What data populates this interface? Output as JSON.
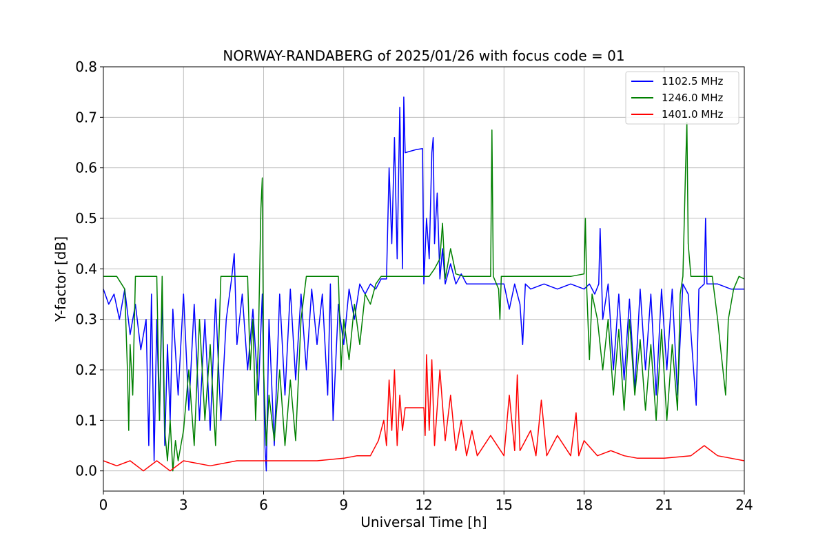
{
  "chart_data": {
    "type": "line",
    "title": "NORWAY-RANDABERG of 2025/01/26 with focus code = 01",
    "xlabel": "Universal Time [h]",
    "ylabel": "Y-factor [dB]",
    "xlim": [
      0,
      24
    ],
    "ylim": [
      -0.04,
      0.8
    ],
    "xticks": [
      0,
      3,
      6,
      9,
      12,
      15,
      18,
      21,
      24
    ],
    "xtick_labels": [
      "0",
      "3",
      "6",
      "9",
      "12",
      "15",
      "18",
      "21",
      "24"
    ],
    "yticks": [
      0.0,
      0.1,
      0.2,
      0.3,
      0.4,
      0.5,
      0.6,
      0.7,
      0.8
    ],
    "ytick_labels": [
      "0.0",
      "0.1",
      "0.2",
      "0.3",
      "0.4",
      "0.5",
      "0.6",
      "0.7",
      "0.8"
    ],
    "grid": true,
    "legend_position": "top-right",
    "series": [
      {
        "name": "1102.5 MHz",
        "color": "#0000ff",
        "points": [
          [
            0.0,
            0.36
          ],
          [
            0.2,
            0.33
          ],
          [
            0.4,
            0.35
          ],
          [
            0.6,
            0.3
          ],
          [
            0.8,
            0.36
          ],
          [
            1.0,
            0.27
          ],
          [
            1.2,
            0.33
          ],
          [
            1.4,
            0.24
          ],
          [
            1.6,
            0.3
          ],
          [
            1.7,
            0.05
          ],
          [
            1.8,
            0.35
          ],
          [
            1.9,
            0.02
          ],
          [
            2.0,
            0.3
          ],
          [
            2.1,
            0.1
          ],
          [
            2.2,
            0.35
          ],
          [
            2.3,
            0.05
          ],
          [
            2.4,
            0.25
          ],
          [
            2.5,
            0.1
          ],
          [
            2.6,
            0.32
          ],
          [
            2.8,
            0.15
          ],
          [
            3.0,
            0.35
          ],
          [
            3.2,
            0.12
          ],
          [
            3.4,
            0.33
          ],
          [
            3.6,
            0.1
          ],
          [
            3.8,
            0.3
          ],
          [
            4.0,
            0.08
          ],
          [
            4.2,
            0.34
          ],
          [
            4.4,
            0.1
          ],
          [
            4.6,
            0.3
          ],
          [
            4.8,
            0.38
          ],
          [
            4.9,
            0.43
          ],
          [
            5.0,
            0.25
          ],
          [
            5.2,
            0.35
          ],
          [
            5.4,
            0.2
          ],
          [
            5.6,
            0.32
          ],
          [
            5.8,
            0.15
          ],
          [
            5.95,
            0.35
          ],
          [
            6.05,
            0.05
          ],
          [
            6.1,
            0.0
          ],
          [
            6.2,
            0.3
          ],
          [
            6.4,
            0.05
          ],
          [
            6.6,
            0.35
          ],
          [
            6.8,
            0.15
          ],
          [
            7.0,
            0.36
          ],
          [
            7.2,
            0.18
          ],
          [
            7.4,
            0.35
          ],
          [
            7.6,
            0.2
          ],
          [
            7.8,
            0.36
          ],
          [
            8.0,
            0.25
          ],
          [
            8.2,
            0.35
          ],
          [
            8.4,
            0.15
          ],
          [
            8.5,
            0.37
          ],
          [
            8.6,
            0.1
          ],
          [
            8.8,
            0.33
          ],
          [
            9.0,
            0.25
          ],
          [
            9.2,
            0.36
          ],
          [
            9.4,
            0.3
          ],
          [
            9.6,
            0.37
          ],
          [
            9.8,
            0.35
          ],
          [
            10.0,
            0.37
          ],
          [
            10.2,
            0.36
          ],
          [
            10.4,
            0.38
          ],
          [
            10.6,
            0.38
          ],
          [
            10.7,
            0.6
          ],
          [
            10.8,
            0.45
          ],
          [
            10.9,
            0.66
          ],
          [
            11.0,
            0.42
          ],
          [
            11.1,
            0.72
          ],
          [
            11.2,
            0.4
          ],
          [
            11.25,
            0.74
          ],
          [
            11.3,
            0.63
          ],
          [
            11.5,
            0.633
          ],
          [
            11.7,
            0.636
          ],
          [
            11.95,
            0.638
          ],
          [
            12.0,
            0.37
          ],
          [
            12.1,
            0.5
          ],
          [
            12.2,
            0.42
          ],
          [
            12.3,
            0.63
          ],
          [
            12.35,
            0.66
          ],
          [
            12.4,
            0.45
          ],
          [
            12.5,
            0.55
          ],
          [
            12.6,
            0.38
          ],
          [
            12.7,
            0.44
          ],
          [
            12.8,
            0.37
          ],
          [
            13.0,
            0.41
          ],
          [
            13.2,
            0.37
          ],
          [
            13.4,
            0.39
          ],
          [
            13.6,
            0.37
          ],
          [
            14.0,
            0.37
          ],
          [
            14.5,
            0.37
          ],
          [
            15.0,
            0.37
          ],
          [
            15.2,
            0.32
          ],
          [
            15.4,
            0.37
          ],
          [
            15.6,
            0.33
          ],
          [
            15.7,
            0.25
          ],
          [
            15.8,
            0.37
          ],
          [
            16.0,
            0.36
          ],
          [
            16.5,
            0.37
          ],
          [
            17.0,
            0.36
          ],
          [
            17.5,
            0.37
          ],
          [
            18.0,
            0.36
          ],
          [
            18.2,
            0.37
          ],
          [
            18.4,
            0.35
          ],
          [
            18.55,
            0.37
          ],
          [
            18.6,
            0.48
          ],
          [
            18.7,
            0.3
          ],
          [
            18.9,
            0.37
          ],
          [
            19.1,
            0.2
          ],
          [
            19.3,
            0.35
          ],
          [
            19.5,
            0.18
          ],
          [
            19.7,
            0.34
          ],
          [
            19.9,
            0.16
          ],
          [
            20.1,
            0.36
          ],
          [
            20.3,
            0.2
          ],
          [
            20.5,
            0.35
          ],
          [
            20.7,
            0.15
          ],
          [
            20.9,
            0.36
          ],
          [
            21.1,
            0.2
          ],
          [
            21.3,
            0.36
          ],
          [
            21.5,
            0.15
          ],
          [
            21.7,
            0.37
          ],
          [
            21.9,
            0.35
          ],
          [
            22.1,
            0.2
          ],
          [
            22.2,
            0.13
          ],
          [
            22.3,
            0.36
          ],
          [
            22.5,
            0.37
          ],
          [
            22.55,
            0.5
          ],
          [
            22.6,
            0.37
          ],
          [
            23.0,
            0.37
          ],
          [
            23.5,
            0.36
          ],
          [
            24.0,
            0.36
          ]
        ]
      },
      {
        "name": "1246.0 MHz",
        "color": "#008000",
        "points": [
          [
            0.0,
            0.385
          ],
          [
            0.5,
            0.385
          ],
          [
            0.8,
            0.36
          ],
          [
            0.9,
            0.2
          ],
          [
            0.95,
            0.08
          ],
          [
            1.0,
            0.25
          ],
          [
            1.1,
            0.15
          ],
          [
            1.2,
            0.385
          ],
          [
            1.5,
            0.385
          ],
          [
            1.8,
            0.385
          ],
          [
            2.0,
            0.385
          ],
          [
            2.1,
            0.1
          ],
          [
            2.2,
            0.385
          ],
          [
            2.3,
            0.08
          ],
          [
            2.4,
            0.02
          ],
          [
            2.5,
            0.1
          ],
          [
            2.6,
            0.0
          ],
          [
            2.7,
            0.06
          ],
          [
            2.8,
            0.02
          ],
          [
            3.0,
            0.08
          ],
          [
            3.2,
            0.2
          ],
          [
            3.4,
            0.05
          ],
          [
            3.6,
            0.3
          ],
          [
            3.8,
            0.1
          ],
          [
            4.0,
            0.25
          ],
          [
            4.2,
            0.05
          ],
          [
            4.4,
            0.385
          ],
          [
            4.6,
            0.385
          ],
          [
            4.8,
            0.385
          ],
          [
            5.0,
            0.385
          ],
          [
            5.2,
            0.385
          ],
          [
            5.4,
            0.385
          ],
          [
            5.5,
            0.2
          ],
          [
            5.6,
            0.3
          ],
          [
            5.7,
            0.1
          ],
          [
            5.8,
            0.25
          ],
          [
            5.9,
            0.52
          ],
          [
            5.95,
            0.58
          ],
          [
            6.0,
            0.2
          ],
          [
            6.1,
            0.05
          ],
          [
            6.2,
            0.15
          ],
          [
            6.4,
            0.06
          ],
          [
            6.6,
            0.2
          ],
          [
            6.8,
            0.05
          ],
          [
            7.0,
            0.18
          ],
          [
            7.2,
            0.06
          ],
          [
            7.4,
            0.3
          ],
          [
            7.6,
            0.385
          ],
          [
            8.0,
            0.385
          ],
          [
            8.5,
            0.385
          ],
          [
            8.8,
            0.385
          ],
          [
            8.9,
            0.2
          ],
          [
            9.0,
            0.3
          ],
          [
            9.2,
            0.22
          ],
          [
            9.4,
            0.33
          ],
          [
            9.6,
            0.25
          ],
          [
            9.8,
            0.35
          ],
          [
            10.0,
            0.33
          ],
          [
            10.2,
            0.37
          ],
          [
            10.4,
            0.385
          ],
          [
            11.0,
            0.385
          ],
          [
            12.0,
            0.385
          ],
          [
            12.2,
            0.385
          ],
          [
            12.4,
            0.4
          ],
          [
            12.6,
            0.42
          ],
          [
            12.7,
            0.49
          ],
          [
            12.8,
            0.38
          ],
          [
            13.0,
            0.44
          ],
          [
            13.2,
            0.39
          ],
          [
            13.5,
            0.385
          ],
          [
            14.0,
            0.385
          ],
          [
            14.5,
            0.385
          ],
          [
            14.55,
            0.675
          ],
          [
            14.6,
            0.385
          ],
          [
            14.8,
            0.36
          ],
          [
            14.85,
            0.3
          ],
          [
            14.9,
            0.385
          ],
          [
            15.5,
            0.385
          ],
          [
            16.0,
            0.385
          ],
          [
            17.0,
            0.385
          ],
          [
            17.5,
            0.385
          ],
          [
            18.0,
            0.39
          ],
          [
            18.05,
            0.5
          ],
          [
            18.1,
            0.36
          ],
          [
            18.2,
            0.22
          ],
          [
            18.3,
            0.35
          ],
          [
            18.5,
            0.3
          ],
          [
            18.7,
            0.2
          ],
          [
            18.9,
            0.3
          ],
          [
            19.1,
            0.15
          ],
          [
            19.3,
            0.28
          ],
          [
            19.5,
            0.12
          ],
          [
            19.7,
            0.3
          ],
          [
            19.9,
            0.15
          ],
          [
            20.1,
            0.26
          ],
          [
            20.3,
            0.12
          ],
          [
            20.5,
            0.25
          ],
          [
            20.7,
            0.1
          ],
          [
            20.9,
            0.28
          ],
          [
            21.1,
            0.1
          ],
          [
            21.3,
            0.25
          ],
          [
            21.5,
            0.12
          ],
          [
            21.6,
            0.35
          ],
          [
            21.7,
            0.385
          ],
          [
            21.8,
            0.6
          ],
          [
            21.85,
            0.69
          ],
          [
            21.9,
            0.45
          ],
          [
            22.0,
            0.385
          ],
          [
            22.5,
            0.385
          ],
          [
            22.8,
            0.385
          ],
          [
            23.0,
            0.3
          ],
          [
            23.1,
            0.25
          ],
          [
            23.2,
            0.2
          ],
          [
            23.3,
            0.15
          ],
          [
            23.4,
            0.3
          ],
          [
            23.6,
            0.36
          ],
          [
            23.8,
            0.385
          ],
          [
            24.0,
            0.38
          ]
        ]
      },
      {
        "name": "1401.0 MHz",
        "color": "#ff0000",
        "points": [
          [
            0.0,
            0.02
          ],
          [
            0.5,
            0.01
          ],
          [
            1.0,
            0.02
          ],
          [
            1.5,
            0.0
          ],
          [
            2.0,
            0.02
          ],
          [
            2.5,
            0.0
          ],
          [
            3.0,
            0.02
          ],
          [
            4.0,
            0.01
          ],
          [
            5.0,
            0.02
          ],
          [
            6.0,
            0.02
          ],
          [
            7.0,
            0.02
          ],
          [
            8.0,
            0.02
          ],
          [
            9.0,
            0.025
          ],
          [
            9.5,
            0.03
          ],
          [
            10.0,
            0.03
          ],
          [
            10.3,
            0.06
          ],
          [
            10.5,
            0.1
          ],
          [
            10.6,
            0.05
          ],
          [
            10.7,
            0.18
          ],
          [
            10.8,
            0.08
          ],
          [
            10.9,
            0.2
          ],
          [
            11.0,
            0.05
          ],
          [
            11.1,
            0.15
          ],
          [
            11.2,
            0.08
          ],
          [
            11.3,
            0.125
          ],
          [
            11.6,
            0.125
          ],
          [
            12.0,
            0.125
          ],
          [
            12.05,
            0.07
          ],
          [
            12.1,
            0.23
          ],
          [
            12.2,
            0.08
          ],
          [
            12.3,
            0.22
          ],
          [
            12.4,
            0.05
          ],
          [
            12.6,
            0.2
          ],
          [
            12.8,
            0.06
          ],
          [
            13.0,
            0.15
          ],
          [
            13.2,
            0.04
          ],
          [
            13.4,
            0.1
          ],
          [
            13.6,
            0.03
          ],
          [
            13.8,
            0.08
          ],
          [
            14.0,
            0.03
          ],
          [
            14.5,
            0.07
          ],
          [
            15.0,
            0.03
          ],
          [
            15.2,
            0.15
          ],
          [
            15.4,
            0.04
          ],
          [
            15.5,
            0.19
          ],
          [
            15.6,
            0.04
          ],
          [
            16.0,
            0.08
          ],
          [
            16.2,
            0.03
          ],
          [
            16.4,
            0.14
          ],
          [
            16.6,
            0.03
          ],
          [
            17.0,
            0.07
          ],
          [
            17.5,
            0.03
          ],
          [
            17.7,
            0.115
          ],
          [
            17.8,
            0.03
          ],
          [
            18.0,
            0.06
          ],
          [
            18.5,
            0.03
          ],
          [
            19.0,
            0.04
          ],
          [
            19.5,
            0.03
          ],
          [
            20.0,
            0.025
          ],
          [
            21.0,
            0.025
          ],
          [
            22.0,
            0.03
          ],
          [
            22.5,
            0.05
          ],
          [
            23.0,
            0.03
          ],
          [
            23.5,
            0.025
          ],
          [
            24.0,
            0.02
          ]
        ]
      }
    ]
  }
}
